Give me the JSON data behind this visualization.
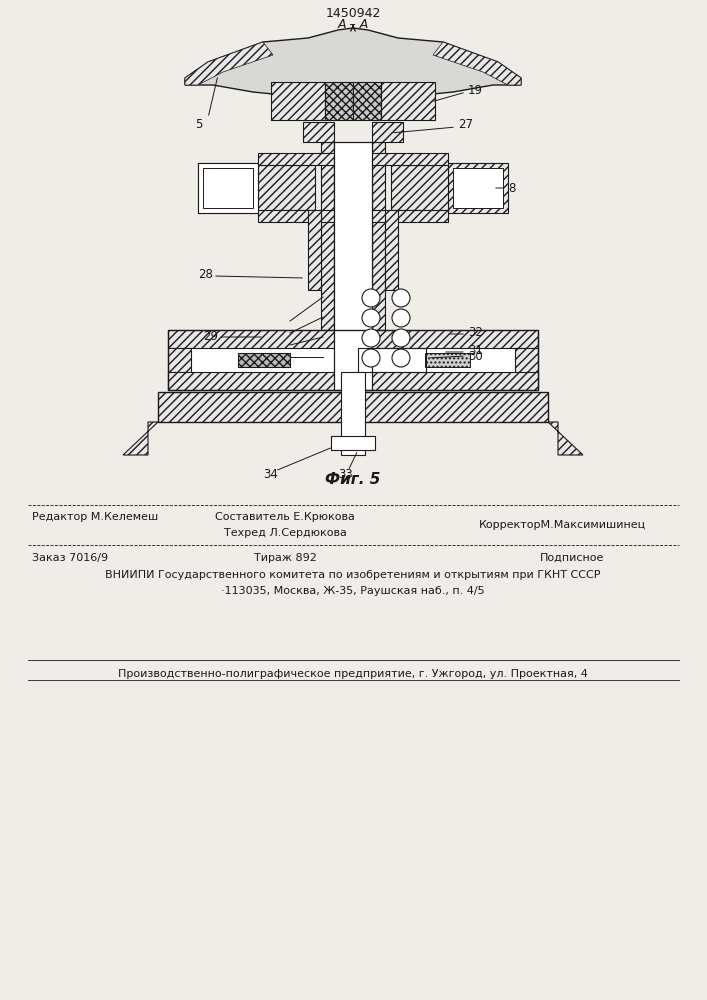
{
  "patent_number": "1450942",
  "figure_label": "Фиг. 5",
  "section_label": "A – A",
  "bg_color": "#f0ede8",
  "line_color": "#1a1a1a",
  "footer": {
    "col1_label": "Редактор М.Келемеш",
    "col2_line1": "Составитель Е.Крюкова",
    "col2_line2": "Техред Л.Сердюкова",
    "col3_label": "КорректорМ.Максимишинец",
    "order": "Заказ 7016/9",
    "tirazh": "Тираж 892",
    "podpisnoe": "Подписное",
    "vnipi_line1": "ВНИИПИ Государственного комитета по изобретениям и открытиям при ГКНТ СССР",
    "vnipi_line2": "·113035, Москва, Ж-35, Раушская наб., п. 4/5",
    "poligraf": "Производственно-полиграфическое предприятие, г. Ужгород, ул. Проектная, 4"
  }
}
